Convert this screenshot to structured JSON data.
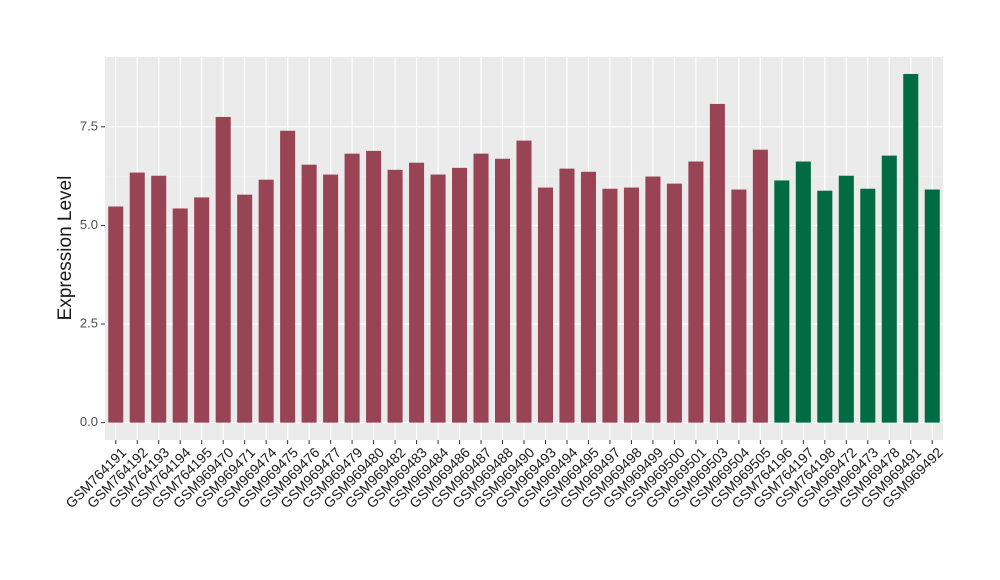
{
  "chart_data": {
    "type": "bar",
    "y_label": "Expression Level",
    "categories": [
      "GSM764191",
      "GSM764192",
      "GSM764193",
      "GSM764194",
      "GSM764195",
      "GSM969470",
      "GSM969471",
      "GSM969474",
      "GSM969475",
      "GSM969476",
      "GSM969477",
      "GSM969479",
      "GSM969480",
      "GSM969482",
      "GSM969483",
      "GSM969484",
      "GSM969486",
      "GSM969487",
      "GSM969488",
      "GSM969490",
      "GSM969493",
      "GSM969494",
      "GSM969495",
      "GSM969497",
      "GSM969498",
      "GSM969499",
      "GSM969500",
      "GSM969501",
      "GSM969503",
      "GSM969504",
      "GSM969505",
      "GSM764196",
      "GSM764197",
      "GSM764198",
      "GSM969472",
      "GSM969473",
      "GSM969478",
      "GSM969491",
      "GSM969492"
    ],
    "values": [
      5.48,
      6.34,
      6.26,
      5.43,
      5.71,
      7.75,
      5.78,
      6.16,
      7.4,
      6.54,
      6.29,
      6.82,
      6.89,
      6.41,
      6.59,
      6.29,
      6.46,
      6.82,
      6.69,
      7.15,
      5.96,
      6.44,
      6.36,
      5.93,
      5.96,
      6.24,
      6.06,
      6.62,
      8.08,
      5.91,
      6.92,
      6.14,
      6.62,
      5.88,
      6.26,
      5.93,
      6.77,
      8.84,
      5.91
    ],
    "colors": [
      "#994455",
      "#994455",
      "#994455",
      "#994455",
      "#994455",
      "#994455",
      "#994455",
      "#994455",
      "#994455",
      "#994455",
      "#994455",
      "#994455",
      "#994455",
      "#994455",
      "#994455",
      "#994455",
      "#994455",
      "#994455",
      "#994455",
      "#994455",
      "#994455",
      "#994455",
      "#994455",
      "#994455",
      "#994455",
      "#994455",
      "#994455",
      "#994455",
      "#994455",
      "#994455",
      "#994455",
      "#006b45",
      "#006b45",
      "#006b45",
      "#006b45",
      "#006b45",
      "#006b45",
      "#006b45",
      "#006b45"
    ],
    "ylim": [
      -0.44,
      9.27
    ],
    "yticks": [
      {
        "value": 0,
        "label": "0.0"
      },
      2.5,
      {
        "value": 5,
        "label": "5.0"
      },
      7.5
    ],
    "grid": true
  }
}
